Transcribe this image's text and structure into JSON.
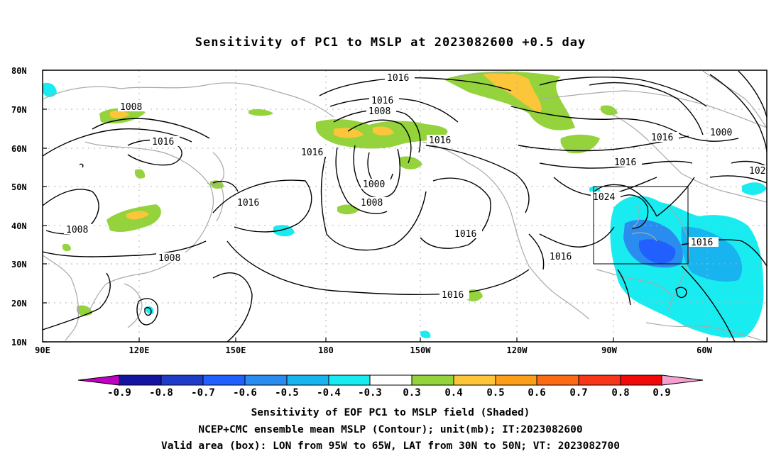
{
  "title": "Sensitivity of PC1 to MSLP at 2023082600 +0.5 day",
  "map": {
    "lat_ticks": [
      "80N",
      "70N",
      "60N",
      "50N",
      "40N",
      "30N",
      "20N",
      "10N"
    ],
    "lon_ticks": [
      "90E",
      "120E",
      "150E",
      "180",
      "150W",
      "120W",
      "90W",
      "60W"
    ],
    "valid_box": {
      "lon": [
        "95W",
        "65W"
      ],
      "lat": [
        "30N",
        "50N"
      ]
    },
    "contour_labels": [
      "1016",
      "1016",
      "1008",
      "1008",
      "1016",
      "1016",
      "1016",
      "1000",
      "1000",
      "1008",
      "1016",
      "1016",
      "1008",
      "1008",
      "1016",
      "1024",
      "1016",
      "1016",
      "1016",
      "1016",
      "1016",
      "102"
    ]
  },
  "colorbar": {
    "ticks": [
      "-0.9",
      "-0.8",
      "-0.7",
      "-0.6",
      "-0.5",
      "-0.4",
      "-0.3",
      "0.3",
      "0.4",
      "0.5",
      "0.6",
      "0.7",
      "0.8",
      "0.9"
    ],
    "colors": [
      "#c000c0",
      "#1414a0",
      "#1f3cc8",
      "#2160ff",
      "#2b8cf0",
      "#18b4f0",
      "#18ecf0",
      "#ffffff",
      "#94d33c",
      "#fdc63a",
      "#fd9e1a",
      "#fd6a14",
      "#f8361a",
      "#f00a0a",
      "#f4a0d0"
    ]
  },
  "captions": [
    "Sensitivity of EOF PC1 to MSLP field (Shaded)",
    "NCEP+CMC ensemble mean MSLP (Contour); unit(mb); IT:2023082600",
    "Valid area (box): LON from 95W to 65W, LAT from 30N to 50N; VT: 2023082700"
  ]
}
